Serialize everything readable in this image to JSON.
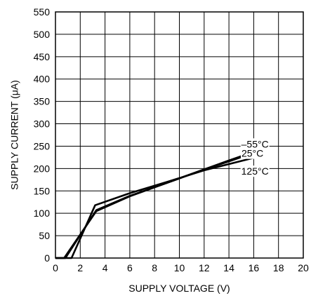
{
  "chart_data": {
    "type": "line",
    "title": "",
    "xlabel": "SUPPLY VOLTAGE (V)",
    "ylabel": "SUPPLY CURRENT (μA)",
    "xlim": [
      0,
      20
    ],
    "ylim": [
      0,
      550
    ],
    "x_ticks": [
      0,
      2,
      4,
      6,
      8,
      10,
      12,
      14,
      16,
      18,
      20
    ],
    "y_ticks": [
      0,
      50,
      100,
      150,
      200,
      250,
      300,
      350,
      400,
      450,
      500,
      550
    ],
    "grid": true,
    "series": [
      {
        "name": "–55°C",
        "x": [
          0,
          0.7,
          3.3,
          6,
          9,
          12,
          14,
          16.3
        ],
        "y": [
          0,
          0,
          105,
          138,
          168,
          198,
          218,
          240
        ]
      },
      {
        "name": "25°C",
        "x": [
          0,
          0.8,
          3.3,
          6,
          9,
          12,
          14,
          16.3
        ],
        "y": [
          0,
          0,
          107,
          139,
          168,
          198,
          216,
          238
        ]
      },
      {
        "name": "125°C",
        "x": [
          0,
          1.3,
          3.2,
          6,
          9,
          12,
          14,
          16.3
        ],
        "y": [
          0,
          0,
          118,
          145,
          170,
          196,
          210,
          226
        ]
      }
    ]
  }
}
